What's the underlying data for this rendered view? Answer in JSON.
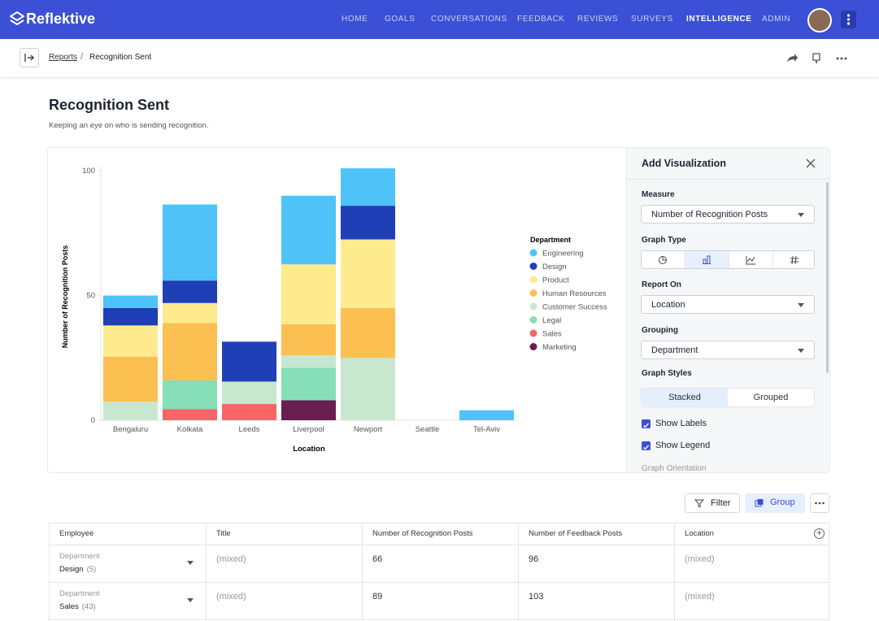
{
  "brand": "Reflektive",
  "nav": [
    "HOME",
    "GOALS",
    "CONVERSATIONS",
    "FEEDBACK",
    "REVIEWS",
    "SURVEYS",
    "INTELLIGENCE",
    "ADMIN"
  ],
  "breadcrumb": {
    "parent": "Reports",
    "current": "Recognition Sent"
  },
  "page": {
    "title": "Recognition Sent",
    "subtitle": "Keeping an eye on who is sending recognition."
  },
  "chart_data": {
    "type": "bar",
    "stacked": true,
    "categories": [
      "Bengaluru",
      "Kolkata",
      "Leeds",
      "Liverpool",
      "Newport",
      "Seattle",
      "Tel-Aviv"
    ],
    "x_label": "Location",
    "y_label": "Number of Recognition Posts",
    "legend_title": "Department",
    "ylim": [
      0,
      102
    ],
    "yticks": [
      0,
      50,
      100
    ],
    "series": [
      {
        "name": "Engineering",
        "color": "#4fc3f7",
        "values": [
          5,
          30.5,
          0,
          27.5,
          15,
          0,
          4
        ]
      },
      {
        "name": "Design",
        "color": "#1f3fb6",
        "values": [
          7,
          9,
          16,
          0,
          13.5,
          0,
          0
        ]
      },
      {
        "name": "Product",
        "color": "#fdeb8e",
        "values": [
          12.5,
          8,
          0,
          24,
          27.5,
          0,
          0
        ]
      },
      {
        "name": "Human Resources",
        "color": "#fcbf52",
        "values": [
          18,
          23,
          0,
          12.5,
          20,
          0,
          0
        ]
      },
      {
        "name": "Customer Success",
        "color": "#c8e7cf",
        "values": [
          7.5,
          0,
          9,
          5,
          25,
          0,
          0
        ]
      },
      {
        "name": "Legal",
        "color": "#86dfb8",
        "values": [
          0,
          11.5,
          0,
          13,
          0,
          0,
          0
        ]
      },
      {
        "name": "Sales",
        "color": "#f76566",
        "values": [
          0,
          4.5,
          6.5,
          0,
          0,
          0,
          0
        ]
      },
      {
        "name": "Marketing",
        "color": "#6a1d50",
        "values": [
          0,
          0,
          0,
          8,
          0,
          0,
          0
        ]
      }
    ]
  },
  "panel": {
    "title": "Add Visualization",
    "measure_label": "Measure",
    "measure": "Number of Recognition Posts",
    "graph_type_label": "Graph Type",
    "report_on_label": "Report On",
    "report_on": "Location",
    "grouping_label": "Grouping",
    "grouping": "Department",
    "graph_styles_label": "Graph Styles",
    "styles": [
      "Stacked",
      "Grouped"
    ],
    "show_labels": "Show Labels",
    "show_legend": "Show Legend",
    "orientation_label": "Graph Orientation"
  },
  "toolbar": {
    "filter": "Filter",
    "group": "Group"
  },
  "table": {
    "columns": [
      "Employee",
      "Title",
      "Number of Recognition Posts",
      "Number of Feedback Posts",
      "Location"
    ],
    "rows": [
      {
        "group": "Department",
        "value": "Design",
        "count": "(5)",
        "cells": [
          "(mixed)",
          "66",
          "96",
          "(mixed)"
        ]
      },
      {
        "group": "Department",
        "value": "Sales",
        "count": "(43)",
        "cells": [
          "(mixed)",
          "89",
          "103",
          "(mixed)"
        ]
      }
    ]
  }
}
